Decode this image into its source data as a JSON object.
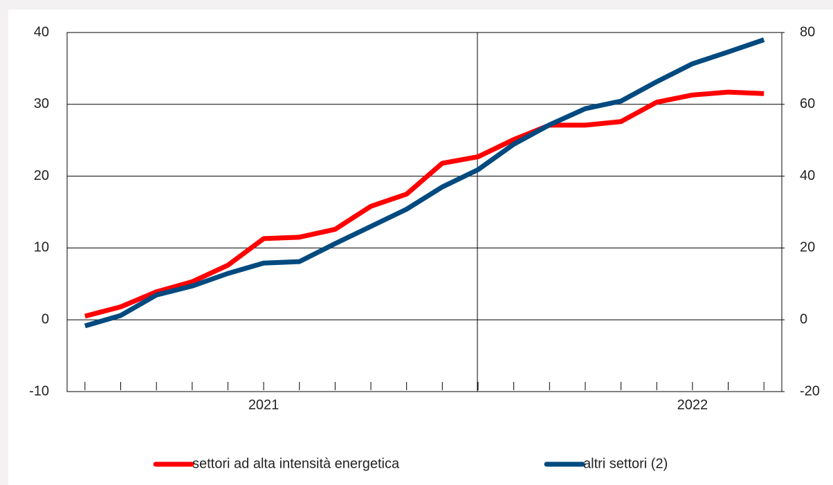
{
  "chart_data": {
    "type": "line",
    "categories": [
      null,
      null,
      null,
      null,
      null,
      "2021",
      null,
      null,
      null,
      null,
      null,
      null,
      null,
      null,
      null,
      null,
      null,
      "2022",
      null,
      null
    ],
    "series": [
      {
        "name": "settori ad alta intensità energetica",
        "color": "#ff0000",
        "axis": "y",
        "values": [
          0.5,
          1.8,
          3.9,
          5.3,
          7.6,
          11.3,
          11.5,
          12.6,
          15.8,
          17.5,
          21.8,
          22.7,
          25.1,
          27.1,
          27.1,
          27.6,
          30.3,
          31.3,
          31.7,
          31.5
        ]
      },
      {
        "name": "altri settori (2)",
        "color": "#004a7f",
        "axis": "y2",
        "values": [
          -1.7,
          1.2,
          6.9,
          9.4,
          12.9,
          15.8,
          16.2,
          21.2,
          26.0,
          30.8,
          37.0,
          41.8,
          48.9,
          54.3,
          58.8,
          60.9,
          66.3,
          71.3,
          74.6,
          78.0
        ]
      }
    ],
    "ylim": [
      -10,
      40
    ],
    "yticks": [
      -10,
      0,
      10,
      20,
      30,
      40
    ],
    "y2lim": [
      -20,
      80
    ],
    "y2ticks": [
      -20,
      0,
      20,
      40,
      60,
      80
    ],
    "grid": true,
    "legend": "bottom"
  }
}
